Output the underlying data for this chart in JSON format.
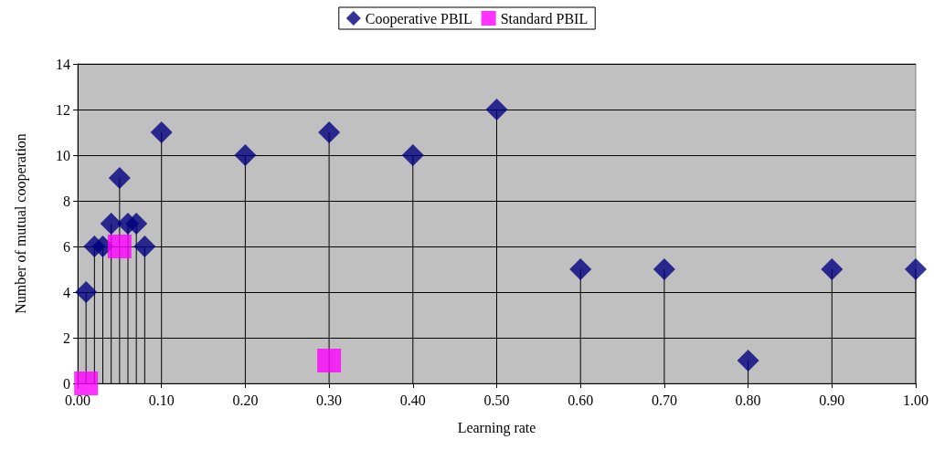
{
  "chart_data": {
    "type": "scatter",
    "xlabel": "Learning rate",
    "ylabel": "Number of mutual cooperation",
    "xlim": [
      0,
      1
    ],
    "xticks": [
      {
        "value": 0,
        "label": "0.00"
      },
      {
        "value": 0.1,
        "label": "0.10"
      },
      {
        "value": 0.2,
        "label": "0.20"
      },
      {
        "value": 0.3,
        "label": "0.30"
      },
      {
        "value": 0.4,
        "label": "0.40"
      },
      {
        "value": 0.5,
        "label": "0.50"
      },
      {
        "value": 0.6,
        "label": "0.60"
      },
      {
        "value": 0.7,
        "label": "0.70"
      },
      {
        "value": 0.8,
        "label": "0.80"
      },
      {
        "value": 0.9,
        "label": "0.90"
      },
      {
        "value": 1,
        "label": "1.00"
      }
    ],
    "ylim": [
      0,
      14
    ],
    "yticks": [
      0,
      2,
      4,
      6,
      8,
      10,
      12,
      14
    ],
    "grid": "y",
    "legend": "top",
    "series": [
      {
        "name": "Cooperative PBIL",
        "type": "lollipop",
        "marker": "diamond",
        "color": "#000080",
        "x": [
          0.01,
          0.02,
          0.03,
          0.04,
          0.05,
          0.06,
          0.07,
          0.08,
          0.1,
          0.2,
          0.3,
          0.4,
          0.5,
          0.6,
          0.7,
          0.8,
          0.9,
          1.0
        ],
        "values": [
          4,
          6,
          6,
          7,
          9,
          7,
          7,
          6,
          11,
          10,
          11,
          10,
          12,
          5,
          5,
          1,
          5,
          5
        ]
      },
      {
        "name": "Standard PBIL",
        "marker": "square",
        "color": "#ff00ff",
        "x": [
          0.01,
          0.05,
          0.3
        ],
        "values": [
          0,
          6,
          1
        ]
      }
    ]
  }
}
